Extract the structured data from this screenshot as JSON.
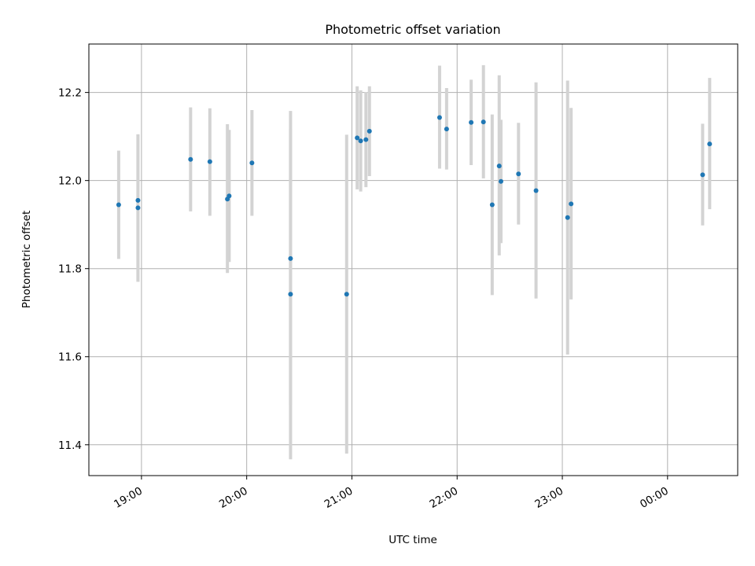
{
  "chart_data": {
    "type": "scatter",
    "title": "Photometric offset variation",
    "xlabel": "UTC time",
    "ylabel": "Photometric offset",
    "xlim": [
      "18:30",
      "00:40"
    ],
    "ylim": [
      11.33,
      12.31
    ],
    "xticks": [
      "19:00",
      "20:00",
      "21:00",
      "22:00",
      "23:00",
      "00:00"
    ],
    "yticks": [
      "11.4",
      "11.6",
      "11.8",
      "12.0",
      "12.2"
    ],
    "grid": true,
    "marker_color": "#1f77b4",
    "errorbar_color": "#d3d3d3",
    "series": [
      {
        "points": [
          {
            "t": "18:47",
            "y": 11.945,
            "lo": 11.822,
            "hi": 12.068
          },
          {
            "t": "18:58",
            "y": 11.955,
            "lo": 11.77,
            "hi": 12.105
          },
          {
            "t": "18:58",
            "y": 11.938,
            "lo": 11.77,
            "hi": 12.105
          },
          {
            "t": "19:28",
            "y": 12.048,
            "lo": 11.93,
            "hi": 12.166
          },
          {
            "t": "19:39",
            "y": 12.043,
            "lo": 11.92,
            "hi": 12.164
          },
          {
            "t": "19:49",
            "y": 11.958,
            "lo": 11.79,
            "hi": 12.128
          },
          {
            "t": "19:50",
            "y": 11.965,
            "lo": 11.815,
            "hi": 12.115
          },
          {
            "t": "20:03",
            "y": 12.04,
            "lo": 11.92,
            "hi": 12.16
          },
          {
            "t": "20:25",
            "y": 11.823,
            "lo": 11.49,
            "hi": 12.158
          },
          {
            "t": "20:25",
            "y": 11.742,
            "lo": 11.367,
            "hi": 12.117
          },
          {
            "t": "20:57",
            "y": 11.742,
            "lo": 11.38,
            "hi": 12.104
          },
          {
            "t": "21:03",
            "y": 12.097,
            "lo": 11.98,
            "hi": 12.214
          },
          {
            "t": "21:05",
            "y": 12.09,
            "lo": 11.975,
            "hi": 12.205
          },
          {
            "t": "21:08",
            "y": 12.093,
            "lo": 11.985,
            "hi": 12.201
          },
          {
            "t": "21:10",
            "y": 12.112,
            "lo": 12.01,
            "hi": 12.214
          },
          {
            "t": "21:50",
            "y": 12.143,
            "lo": 12.027,
            "hi": 12.261
          },
          {
            "t": "21:54",
            "y": 12.117,
            "lo": 12.025,
            "hi": 12.21
          },
          {
            "t": "22:08",
            "y": 12.132,
            "lo": 12.035,
            "hi": 12.229
          },
          {
            "t": "22:15",
            "y": 12.133,
            "lo": 12.005,
            "hi": 12.262
          },
          {
            "t": "22:20",
            "y": 11.945,
            "lo": 11.74,
            "hi": 12.15
          },
          {
            "t": "22:24",
            "y": 12.033,
            "lo": 11.83,
            "hi": 12.239
          },
          {
            "t": "22:25",
            "y": 11.998,
            "lo": 11.858,
            "hi": 12.138
          },
          {
            "t": "22:35",
            "y": 12.015,
            "lo": 11.9,
            "hi": 12.131
          },
          {
            "t": "22:45",
            "y": 11.977,
            "lo": 11.732,
            "hi": 12.223
          },
          {
            "t": "23:03",
            "y": 11.916,
            "lo": 11.605,
            "hi": 12.227
          },
          {
            "t": "23:05",
            "y": 11.947,
            "lo": 11.73,
            "hi": 12.165
          },
          {
            "t": "00:20",
            "y": 12.013,
            "lo": 11.898,
            "hi": 12.129
          },
          {
            "t": "00:24",
            "y": 12.083,
            "lo": 11.935,
            "hi": 12.233
          }
        ]
      }
    ]
  }
}
